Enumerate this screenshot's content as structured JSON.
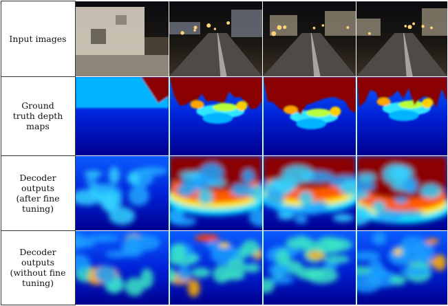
{
  "figure": {
    "row_labels": [
      "Input images",
      "Ground\ntruth depth\nmaps",
      "Decoder\noutputs\n(after fine\ntuning)",
      "Decoder\noutputs\n(without fine\ntuning)"
    ],
    "rows": [
      {
        "kind": "input",
        "columns": 4
      },
      {
        "kind": "ground-truth-depth",
        "columns": 4
      },
      {
        "kind": "decoder-finetuned",
        "columns": 4
      },
      {
        "kind": "decoder-no-finetune",
        "columns": 4
      }
    ],
    "colormap": "jet",
    "colors": {
      "depth_far": "#8b0000",
      "depth_near": "#00008f",
      "separator": "#7fffd4"
    }
  }
}
